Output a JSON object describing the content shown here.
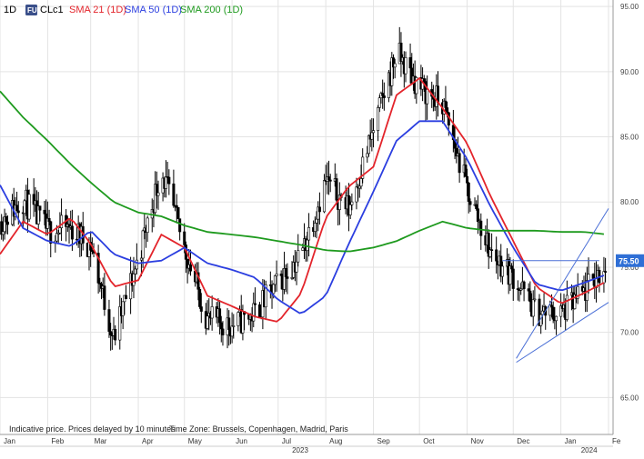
{
  "header": {
    "interval": "1D",
    "badge": "FU",
    "symbol": "CLc1",
    "indicators": [
      {
        "label": "SMA 21 (1D)",
        "color": "#e3242b"
      },
      {
        "label": "SMA 50 (1D)",
        "color": "#2b3ee0"
      },
      {
        "label": "SMA 200 (1D)",
        "color": "#1e9a1e"
      }
    ]
  },
  "footer": {
    "disclaimer": "Indicative price. Prices delayed by 10 minutes",
    "timezone": "Time Zone: Brussels, Copenhagen, Madrid, Paris"
  },
  "colors": {
    "candle": "#000000",
    "sma21": "#e3242b",
    "sma50": "#2b3ee0",
    "sma200": "#1e9a1e",
    "trendline": "#4a6fd6",
    "price_badge_bg": "#2f6fd6",
    "grid": "#e3e3e3"
  },
  "chart_data": {
    "type": "line",
    "instrument": "CLc1",
    "interval": "1D",
    "ylim": [
      63,
      95.5
    ],
    "y_ticks": [
      "95.00",
      "90.00",
      "85.00",
      "80.00",
      "75.00",
      "70.00",
      "65.00"
    ],
    "x_ticks": [
      "Jan",
      "Feb",
      "Mar",
      "Apr",
      "May",
      "Jun",
      "Jul",
      "Aug",
      "Sep",
      "Oct",
      "Nov",
      "Dec",
      "Jan",
      "Fe"
    ],
    "x_year_ticks": [
      "2023",
      "2024"
    ],
    "last_price": "75.50",
    "x_dates": [
      "2023-01-01",
      "2023-01-16",
      "2023-02-01",
      "2023-02-16",
      "2023-03-01",
      "2023-03-16",
      "2023-04-01",
      "2023-04-16",
      "2023-05-01",
      "2023-05-16",
      "2023-06-01",
      "2023-06-16",
      "2023-07-01",
      "2023-07-16",
      "2023-08-01",
      "2023-08-16",
      "2023-09-01",
      "2023-09-16",
      "2023-10-01",
      "2023-10-16",
      "2023-11-01",
      "2023-11-16",
      "2023-12-01",
      "2023-12-16",
      "2024-01-01",
      "2024-01-16",
      "2024-02-01"
    ],
    "series": [
      {
        "name": "CLc1",
        "kind": "close",
        "values": [
          78.5,
          80.2,
          77.8,
          78.0,
          76.7,
          69.5,
          75.7,
          82.5,
          76.5,
          71.0,
          70.5,
          71.5,
          73.8,
          76.0,
          81.6,
          79.5,
          85.5,
          91.5,
          88.8,
          87.5,
          81.0,
          76.2,
          74.3,
          71.5,
          71.4,
          73.0,
          75.5
        ]
      },
      {
        "name": "SMA 21 (1D)",
        "values": [
          76.0,
          78.5,
          77.5,
          78.8,
          76.8,
          73.5,
          74.0,
          77.5,
          76.5,
          72.8,
          72.0,
          71.2,
          70.8,
          73.0,
          78.8,
          81.2,
          82.7,
          88.2,
          89.5,
          87.2,
          84.5,
          80.5,
          77.0,
          73.5,
          72.2,
          73.0,
          74.0
        ]
      },
      {
        "name": "SMA 50 (1D)",
        "values": [
          81.3,
          78.0,
          77.0,
          76.6,
          77.8,
          76.0,
          75.3,
          75.5,
          76.5,
          75.3,
          74.8,
          74.2,
          72.5,
          71.4,
          72.8,
          76.8,
          80.8,
          84.7,
          86.2,
          86.2,
          83.3,
          79.7,
          76.5,
          73.7,
          73.2,
          73.8,
          74.5
        ]
      },
      {
        "name": "SMA 200 (1D)",
        "values": [
          88.5,
          86.5,
          84.7,
          82.9,
          81.5,
          80.0,
          79.2,
          78.9,
          78.2,
          77.7,
          77.5,
          77.3,
          77.0,
          76.7,
          76.3,
          76.2,
          76.5,
          77.0,
          77.8,
          78.5,
          78.0,
          77.8,
          77.8,
          77.8,
          77.7,
          77.7,
          77.5
        ]
      }
    ],
    "trendlines": [
      {
        "from": [
          "2023-11-24",
          75.5
        ],
        "to": [
          "2024-01-26",
          75.5
        ]
      },
      {
        "from": [
          "2023-12-03",
          68.0
        ],
        "to": [
          "2024-02-01",
          79.5
        ]
      },
      {
        "from": [
          "2023-12-03",
          67.7
        ],
        "to": [
          "2024-02-01",
          72.3
        ]
      }
    ]
  }
}
